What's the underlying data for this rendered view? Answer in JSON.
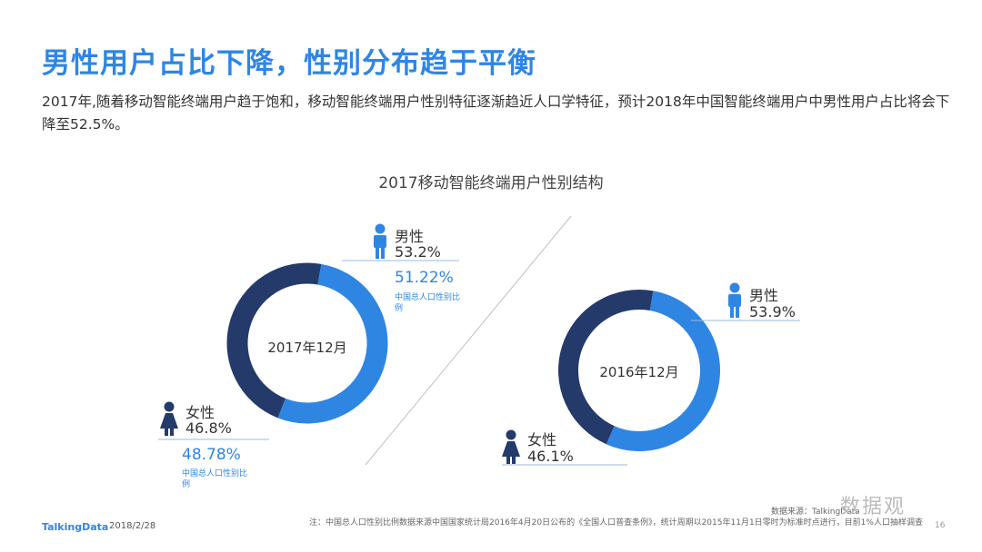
{
  "header": {
    "title": "男性用户占比下降，性别分布趋于平衡",
    "description": "2017年,随着移动智能终端用户趋于饱和，移动智能终端用户性别特征逐渐趋近人口学特征，预计2018年中国智能终端用户中男性用户占比将会下降至52.5%。"
  },
  "colors": {
    "male": "#2f86e2",
    "female": "#243a6b",
    "title": "#2f86e2"
  },
  "chart_data": {
    "type": "pie",
    "title": "2017移动智能终端用户性别结构",
    "charts": [
      {
        "center_label": "2017年12月",
        "slices": [
          {
            "name": "男性",
            "value": 53.2,
            "label": "53.2%",
            "ref_value": "51.22%",
            "ref_label": "中国总人口性别比例"
          },
          {
            "name": "女性",
            "value": 46.8,
            "label": "46.8%",
            "ref_value": "48.78%",
            "ref_label": "中国总人口性别比例"
          }
        ]
      },
      {
        "center_label": "2016年12月",
        "slices": [
          {
            "name": "男性",
            "value": 53.9,
            "label": "53.9%"
          },
          {
            "name": "女性",
            "value": 46.1,
            "label": "46.1%"
          }
        ]
      }
    ]
  },
  "footer": {
    "logo": "TalkingData",
    "date": "2018/2/28",
    "note": "注：中国总人口性别比例数据来源中国国家统计局2016年4月20日公布的《全国人口普查条例》，统计周期以2015年11月1日零时为标准时点进行，目前1%人口抽样调查",
    "source": "数据来源：TalkingData",
    "page": "16",
    "watermark": "数据观"
  }
}
